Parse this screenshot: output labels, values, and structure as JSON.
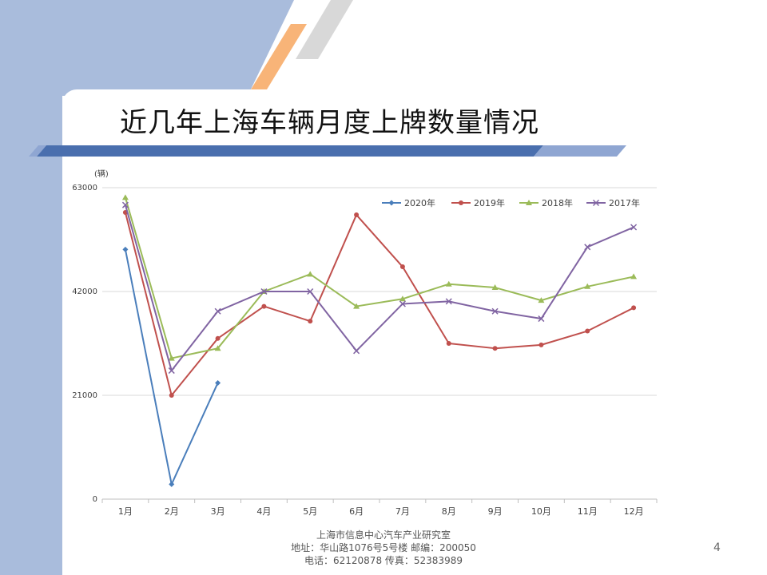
{
  "slide": {
    "title": "近几年上海车辆月度上牌数量情况",
    "page_number": "4",
    "footer": {
      "line1": "上海市信息中心汽车产业研究室",
      "line2": "地址：华山路1076号5号楼    邮编：200050",
      "line3": "电话：62120878  传真：52383989"
    }
  },
  "colors": {
    "background_band": "#a9bcdc",
    "accent_blue": "#4a6fae",
    "accent_orange": "#f8b478",
    "accent_gray": "#d8d8d8"
  },
  "chart_data": {
    "type": "line",
    "title": "",
    "xlabel": "",
    "ylabel": "(辆)",
    "categories": [
      "1月",
      "2月",
      "3月",
      "4月",
      "5月",
      "6月",
      "7月",
      "8月",
      "9月",
      "10月",
      "11月",
      "12月"
    ],
    "ylim": [
      0,
      63000
    ],
    "yticks": [
      0,
      21000,
      42000,
      63000
    ],
    "grid": true,
    "legend_position": "top-right",
    "series": [
      {
        "name": "2020年",
        "color": "#4a7ebb",
        "marker": "diamond",
        "values": [
          50500,
          3000,
          23500,
          null,
          null,
          null,
          null,
          null,
          null,
          null,
          null,
          null
        ]
      },
      {
        "name": "2019年",
        "color": "#c0504d",
        "marker": "circle",
        "values": [
          58000,
          21000,
          32500,
          39000,
          36000,
          57500,
          47000,
          31500,
          30500,
          31200,
          34000,
          38700
        ]
      },
      {
        "name": "2018年",
        "color": "#9bbb59",
        "marker": "triangle",
        "values": [
          61000,
          28500,
          30500,
          42000,
          45500,
          39000,
          40500,
          43500,
          42800,
          40200,
          43000,
          45000
        ]
      },
      {
        "name": "2017年",
        "color": "#8064a2",
        "marker": "x",
        "values": [
          59500,
          26000,
          38000,
          42000,
          42000,
          30000,
          39500,
          40000,
          38000,
          36500,
          51000,
          55000
        ]
      }
    ]
  }
}
